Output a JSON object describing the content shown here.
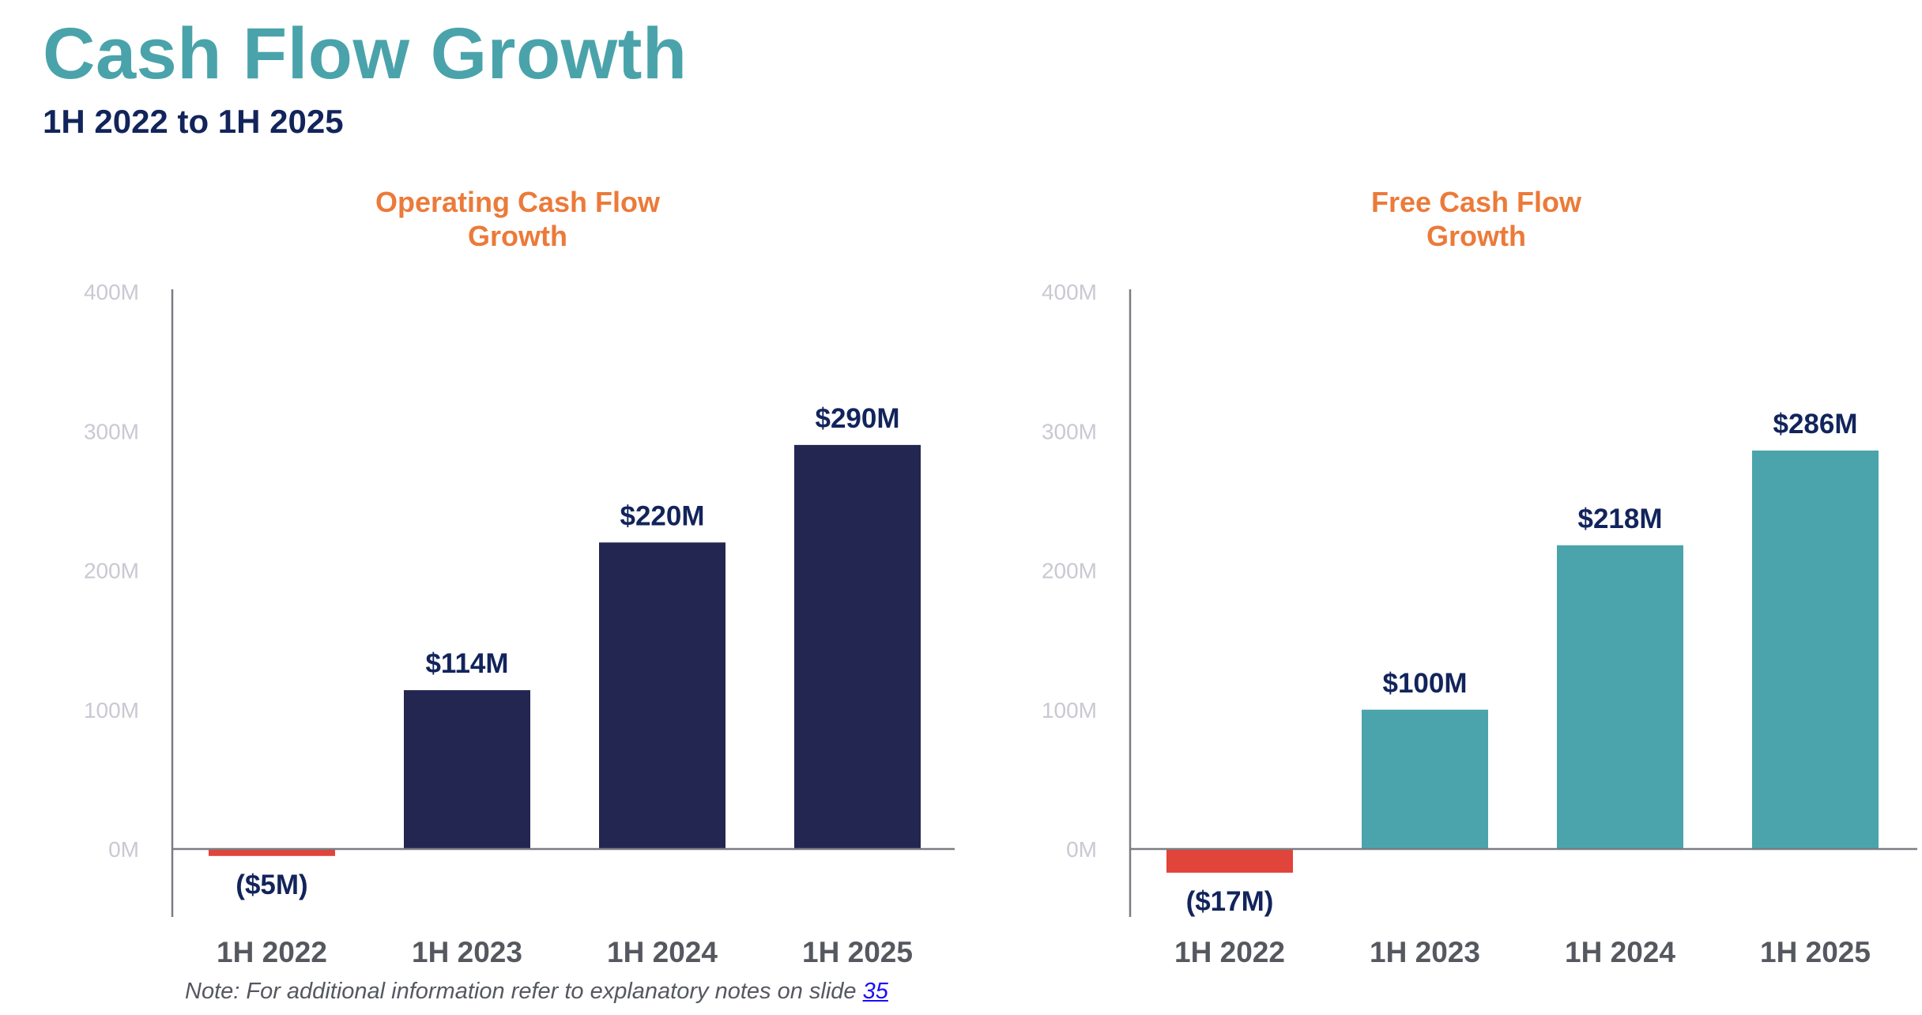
{
  "title": "Cash Flow Growth",
  "subtitle": "1H 2022 to 1H 2025",
  "note": {
    "text": "Note: For additional information refer to explanatory notes on slide ",
    "link": "35"
  },
  "colors": {
    "title": "#4aa3aa",
    "subtitle": "#12245b",
    "chart_title": "#ec7a39",
    "negative": "#e0443a"
  },
  "chart_data": [
    {
      "type": "bar",
      "title_lines": [
        "Operating Cash Flow",
        "Growth"
      ],
      "categories": [
        "1H 2022",
        "1H 2023",
        "1H 2024",
        "1H 2025"
      ],
      "values": [
        -5,
        114,
        220,
        290
      ],
      "value_labels": [
        "($5M)",
        "$114M",
        "$220M",
        "$290M"
      ],
      "unit": "M",
      "ylim": [
        -50,
        400
      ],
      "yticks": [
        0,
        100,
        200,
        300,
        400
      ],
      "ytick_labels": [
        "0M",
        "100M",
        "200M",
        "300M",
        "400M"
      ],
      "bar_color": "#222650",
      "negative_color": "#e0443a",
      "grid": false
    },
    {
      "type": "bar",
      "title_lines": [
        "Free Cash Flow",
        "Growth"
      ],
      "categories": [
        "1H 2022",
        "1H 2023",
        "1H 2024",
        "1H 2025"
      ],
      "values": [
        -17,
        100,
        218,
        286
      ],
      "value_labels": [
        "($17M)",
        "$100M",
        "$218M",
        "$286M"
      ],
      "unit": "M",
      "ylim": [
        -50,
        400
      ],
      "yticks": [
        0,
        100,
        200,
        300,
        400
      ],
      "ytick_labels": [
        "0M",
        "100M",
        "200M",
        "300M",
        "400M"
      ],
      "bar_color": "#4ba4ab",
      "negative_color": "#e0443a",
      "grid": false
    }
  ]
}
